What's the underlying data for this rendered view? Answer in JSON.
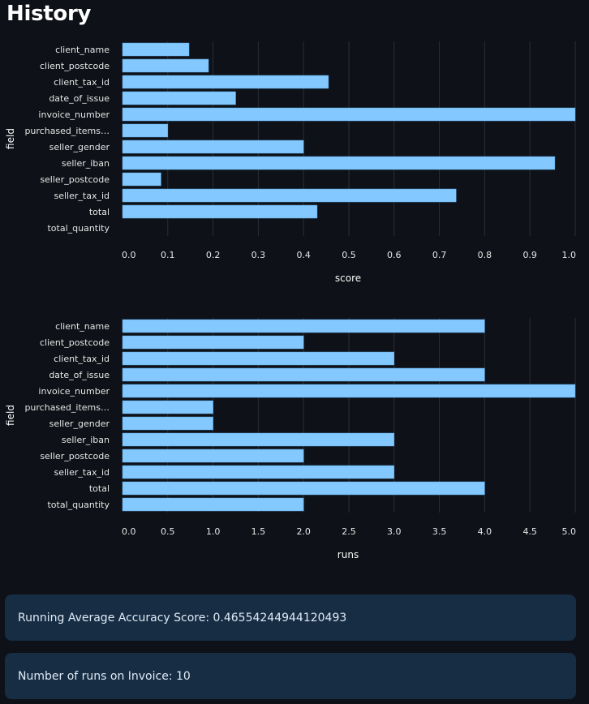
{
  "page": {
    "title": "History"
  },
  "colors": {
    "background": "#0e1117",
    "bar": "#83c9ff",
    "grid": "#2a2e38",
    "info_bg": "#172d43"
  },
  "chart_data": [
    {
      "type": "bar",
      "orientation": "horizontal",
      "categories": [
        "client_name",
        "client_postcode",
        "client_tax_id",
        "date_of_issue",
        "invoice_number",
        "purchased_items…",
        "seller_gender",
        "seller_iban",
        "seller_postcode",
        "seller_tax_id",
        "total",
        "total_quantity"
      ],
      "values": [
        0.147,
        0.19,
        0.455,
        0.25,
        1.0,
        0.1,
        0.4,
        0.955,
        0.085,
        0.737,
        0.43,
        0.0
      ],
      "xlabel": "score",
      "ylabel": "field",
      "xlim": [
        0,
        1.0
      ],
      "xticks": [
        0.0,
        0.1,
        0.2,
        0.3,
        0.4,
        0.5,
        0.6,
        0.7,
        0.8,
        0.9,
        1.0
      ],
      "tick_labels": [
        "0.0",
        "0.1",
        "0.2",
        "0.3",
        "0.4",
        "0.5",
        "0.6",
        "0.7",
        "0.8",
        "0.9",
        "1.0"
      ],
      "grid": true
    },
    {
      "type": "bar",
      "orientation": "horizontal",
      "categories": [
        "client_name",
        "client_postcode",
        "client_tax_id",
        "date_of_issue",
        "invoice_number",
        "purchased_items…",
        "seller_gender",
        "seller_iban",
        "seller_postcode",
        "seller_tax_id",
        "total",
        "total_quantity"
      ],
      "values": [
        4,
        2,
        3,
        4,
        5,
        1,
        1,
        3,
        2,
        3,
        4,
        2
      ],
      "xlabel": "runs",
      "ylabel": "field",
      "xlim": [
        0,
        5
      ],
      "xticks": [
        0,
        0.5,
        1,
        1.5,
        2,
        2.5,
        3,
        3.5,
        4,
        4.5,
        5
      ],
      "tick_labels": [
        "0.0",
        "0.5",
        "1.0",
        "1.5",
        "2.0",
        "2.5",
        "3.0",
        "3.5",
        "4.0",
        "4.5",
        "5.0"
      ],
      "grid": true
    }
  ],
  "info": {
    "average_accuracy": "Running Average Accuracy Score: 0.46554244944120493",
    "runs_count": "Number of runs on Invoice: 10"
  }
}
